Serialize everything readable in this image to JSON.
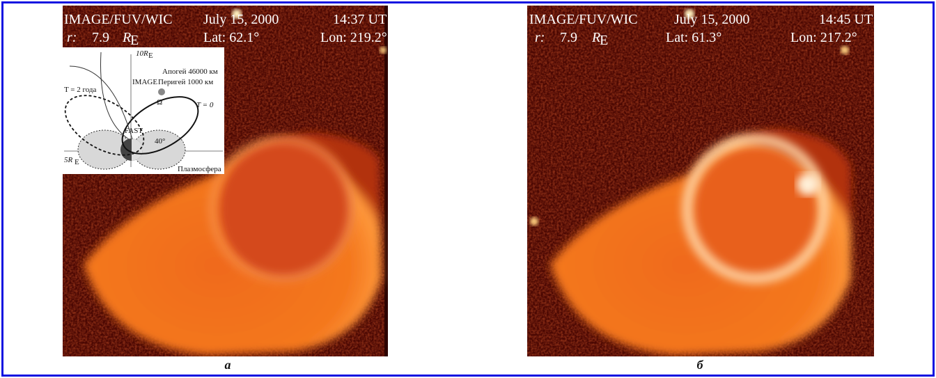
{
  "panels": [
    {
      "instrument": "IMAGE/FUV/WIC",
      "date": "July 15, 2000",
      "time": "14:37 UT",
      "r_label": "r:",
      "r_value": "7.9",
      "r_unit": "R",
      "r_sub": "E",
      "lat": "Lat:  62.1°",
      "lon": "Lon: 219.2°",
      "caption": "а"
    },
    {
      "instrument": "IMAGE/FUV/WIC",
      "date": "July 15, 2000",
      "time": "14:45 UT",
      "r_label": "r:",
      "r_value": "7.9",
      "r_unit": "R",
      "r_sub": "E",
      "lat": "Lat:  61.3°",
      "lon": "Lon: 217.2°",
      "caption": "б"
    }
  ],
  "inset": {
    "distance_far": "10R",
    "distance_far_sub": "E",
    "period": "T = 2 года",
    "satellite": "IMAGE",
    "apogee": "Апогей 46000 км",
    "perigee": "Перигей 1000 км",
    "omega": "Ω",
    "t_zero": "T = 0",
    "fast": "FAST",
    "angle": "40°",
    "distance_near": "5R",
    "distance_near_sub": "E",
    "plasmasphere": "Плазмосфера"
  }
}
